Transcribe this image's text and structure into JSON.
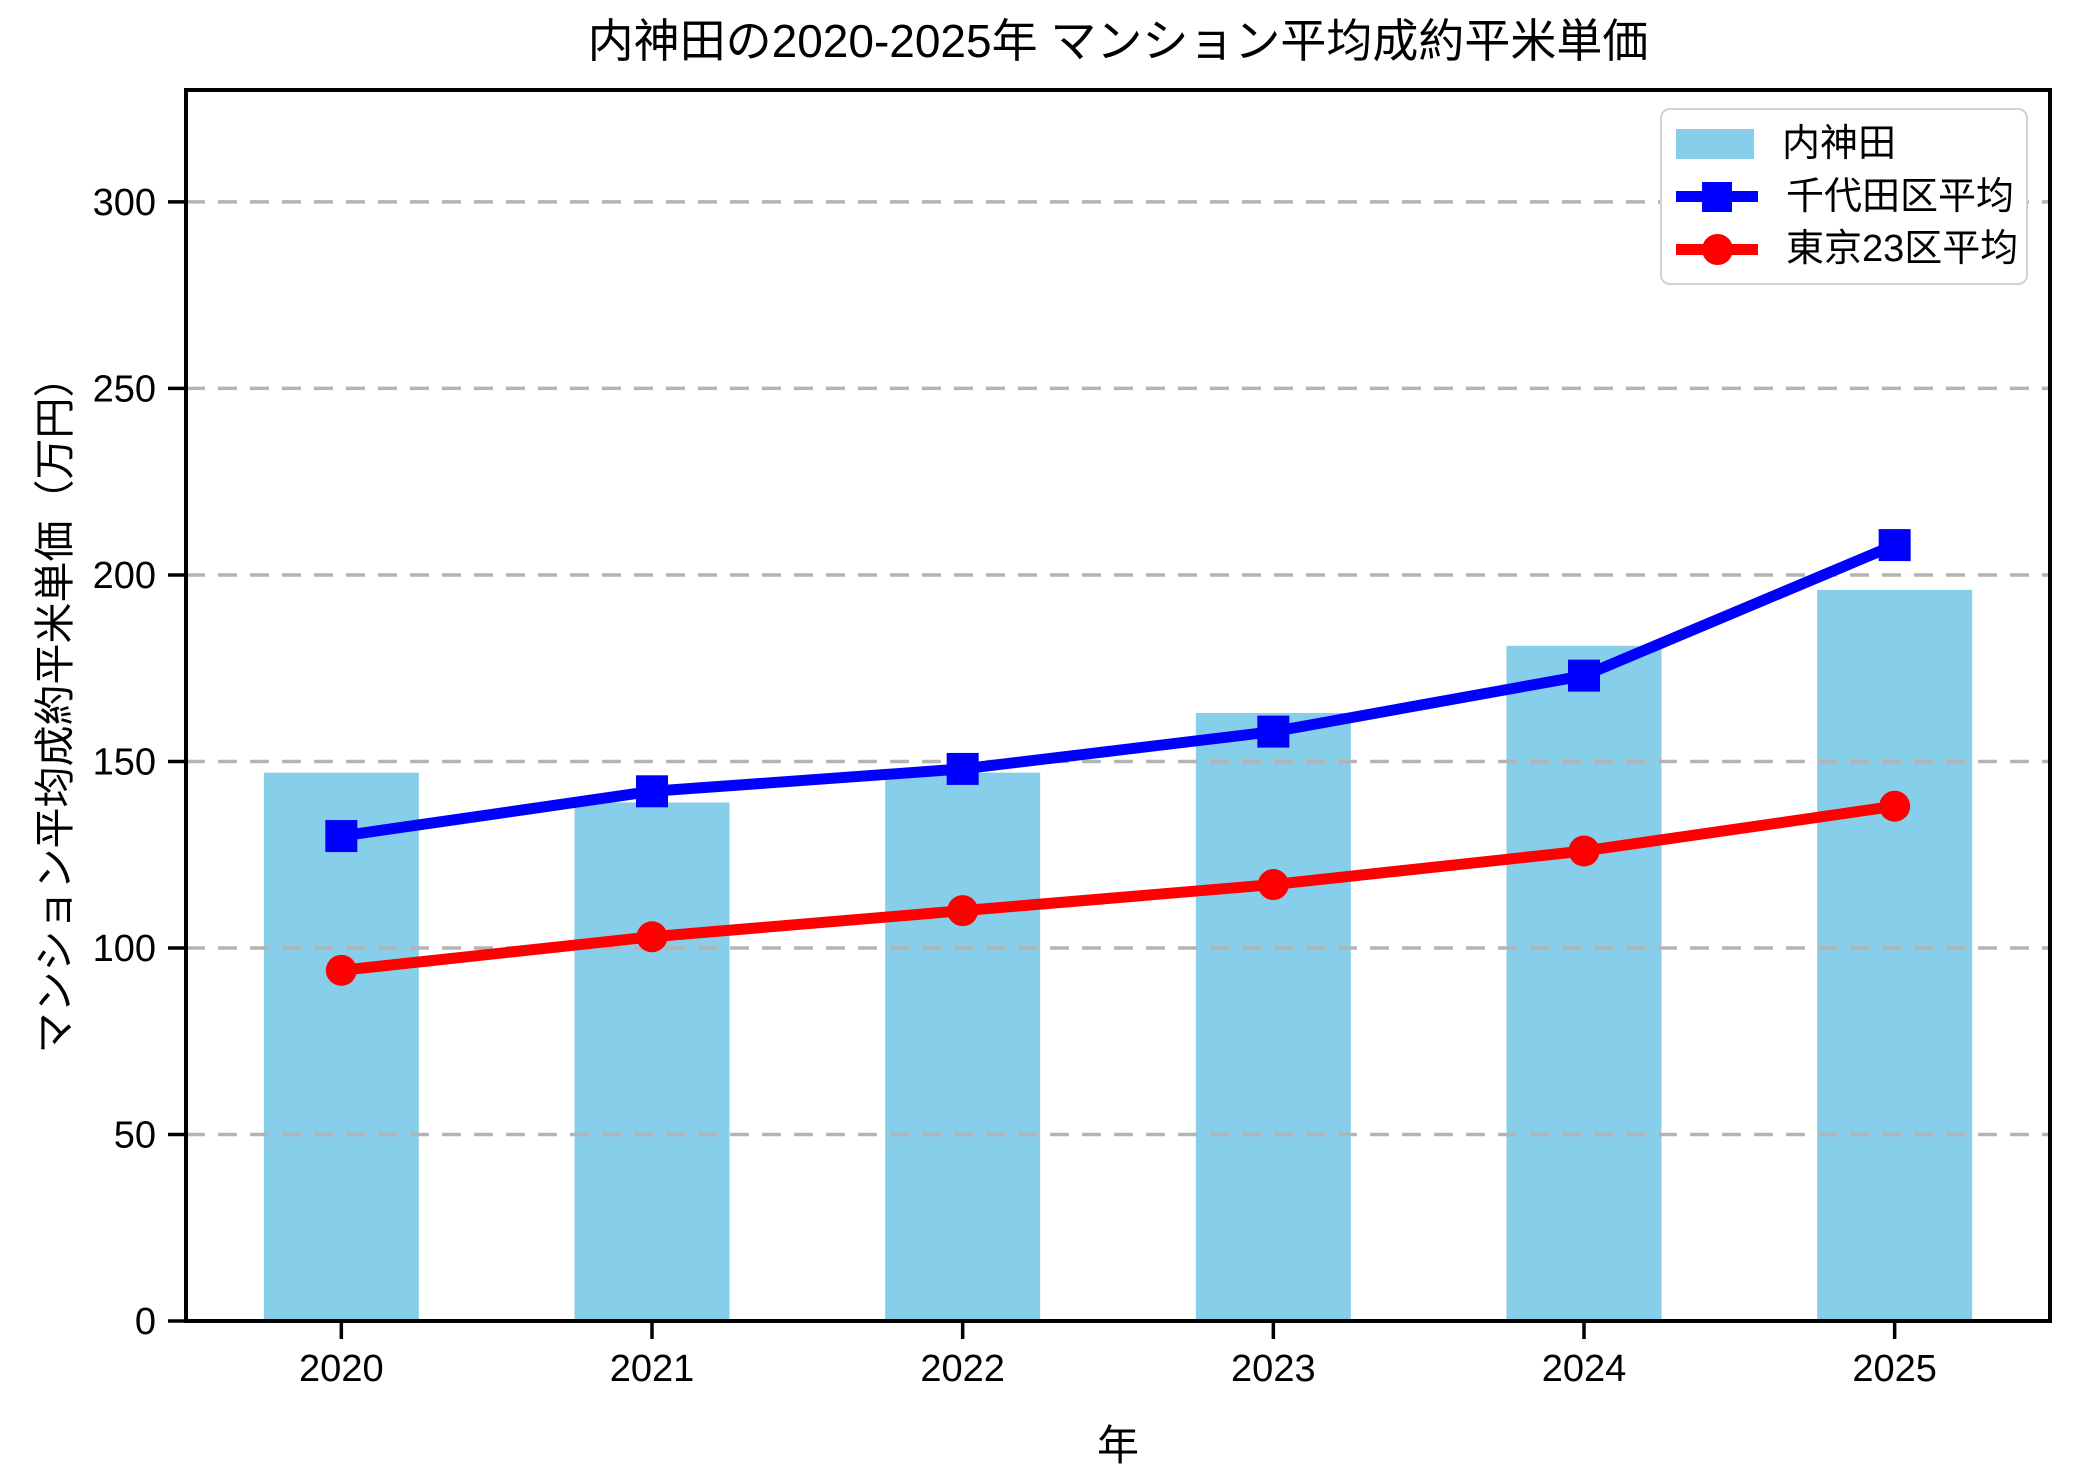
{
  "title": "内神田の2020-2025年 マンション平均成約平米単価",
  "chart_data": {
    "type": "bar",
    "categories": [
      "2020",
      "2021",
      "2022",
      "2023",
      "2024",
      "2025"
    ],
    "series": [
      {
        "name": "内神田",
        "type": "bar",
        "marker": "patch",
        "color": "#87CEEB",
        "values": [
          147,
          139,
          147,
          163,
          181,
          196
        ]
      },
      {
        "name": "千代田区平均",
        "type": "line",
        "marker": "square",
        "color": "#0000FF",
        "values": [
          130,
          142,
          148,
          158,
          173,
          208
        ]
      },
      {
        "name": "東京23区平均",
        "type": "line",
        "marker": "circle",
        "color": "#FF0000",
        "values": [
          94,
          103,
          110,
          117,
          126,
          138
        ]
      }
    ],
    "xlabel": "年",
    "ylabel": "マンション平均成約平米単価（万円）",
    "ylim": [
      0,
      330
    ],
    "yticks": [
      0,
      50,
      100,
      150,
      200,
      250,
      300
    ],
    "grid": "horizontal-dashed",
    "grid_color": "#b4b4b4",
    "legend_position": "upper-right"
  }
}
